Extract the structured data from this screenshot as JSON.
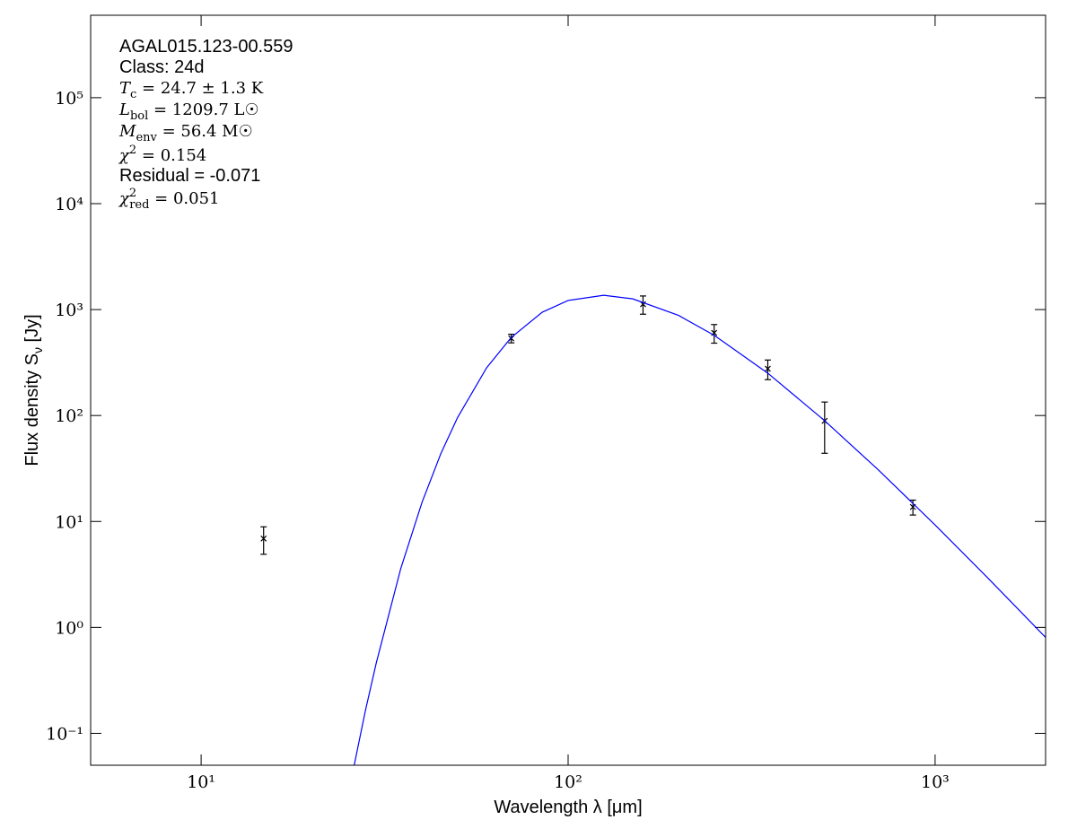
{
  "chart_data": {
    "type": "scatter",
    "xlabel": "Wavelength λ [μm]",
    "ylabel": {
      "main": "Flux density S",
      "sub": "ν",
      "rest": " [Jy]"
    },
    "xscale": "log",
    "yscale": "log",
    "xlim": [
      5,
      2000
    ],
    "ylim": [
      0.05,
      600000
    ],
    "xticks": [
      {
        "value": 10,
        "label": "10¹"
      },
      {
        "value": 100,
        "label": "10²"
      },
      {
        "value": 1000,
        "label": "10³"
      }
    ],
    "yticks": [
      {
        "value": 0.1,
        "label": "10⁻¹"
      },
      {
        "value": 1,
        "label": "10⁰"
      },
      {
        "value": 10,
        "label": "10¹"
      },
      {
        "value": 100,
        "label": "10²"
      },
      {
        "value": 1000,
        "label": "10³"
      },
      {
        "value": 10000,
        "label": "10⁴"
      },
      {
        "value": 100000,
        "label": "10⁵"
      }
    ],
    "annotations": [
      {
        "main": "AGAL015.123-00.559"
      },
      {
        "main": "Class: 24d"
      },
      {
        "main": "T",
        "sub": "c",
        "rest": " = 24.7 ± 1.3 K"
      },
      {
        "main": "L",
        "sub": "bol",
        "rest": " = 1209.7 L☉"
      },
      {
        "main": "M",
        "sub": "env",
        "rest": " = 56.4 M☉"
      },
      {
        "main": "χ",
        "sup": "2",
        "rest": " = 0.154"
      },
      {
        "main": "Residual = -0.071"
      },
      {
        "main": "χ",
        "sup": "2",
        "sub": "red",
        "rest": " = 0.051"
      }
    ],
    "series": [
      {
        "kind": "errorbar",
        "color": "#000000",
        "x": [
          14.8,
          70,
          160,
          250,
          350,
          500,
          870
        ],
        "values": [
          6.9,
          535,
          1124,
          602,
          276,
          89,
          13.7
        ],
        "errors": [
          2,
          50,
          220,
          120,
          58,
          45,
          2.2
        ]
      },
      {
        "kind": "line",
        "color": "#0000ff",
        "x": [
          26,
          28,
          30,
          35,
          40,
          45,
          50,
          60,
          70,
          85,
          100,
          125,
          150,
          200,
          250,
          350,
          500,
          700,
          1000,
          1400,
          2000
        ],
        "values": [
          0.046,
          0.161,
          0.46,
          3.6,
          15.2,
          43.7,
          96,
          283,
          546,
          944,
          1219,
          1365,
          1262,
          881,
          572,
          251,
          89.4,
          30.7,
          9.27,
          2.87,
          0.805
        ]
      }
    ]
  }
}
